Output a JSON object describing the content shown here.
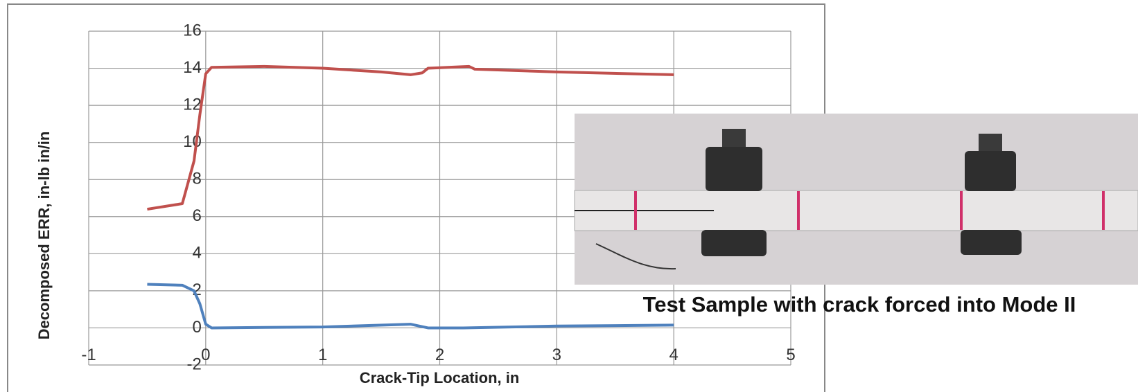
{
  "chart_data": {
    "type": "line",
    "x_label": "Crack-Tip Location, in",
    "y_label": "Decomposed ERR, in-lb in/in",
    "xlim": [
      -1,
      5
    ],
    "xticks": [
      -1,
      0,
      1,
      2,
      3,
      4,
      5
    ],
    "ylim": [
      -2,
      16
    ],
    "yticks": [
      -2,
      0,
      2,
      4,
      6,
      8,
      10,
      12,
      14,
      16
    ],
    "grid": true,
    "series": [
      {
        "color": "#c0504d",
        "x": [
          -0.5,
          -0.2,
          -0.1,
          -0.05,
          0,
          0.05,
          0.5,
          1,
          1.5,
          1.75,
          1.85,
          1.9,
          2.25,
          2.3,
          3,
          4
        ],
        "values": [
          6.4,
          6.7,
          9,
          11.5,
          13.7,
          14.05,
          14.1,
          14.0,
          13.8,
          13.65,
          13.75,
          14.0,
          14.1,
          13.95,
          13.8,
          13.65
        ]
      },
      {
        "color": "#4f81bd",
        "x": [
          -0.5,
          -0.2,
          -0.1,
          -0.05,
          0,
          0.05,
          1,
          1.75,
          1.9,
          2.2,
          3,
          4
        ],
        "values": [
          2.35,
          2.3,
          2.0,
          1.3,
          0.2,
          0.0,
          0.05,
          0.2,
          0.0,
          0.0,
          0.1,
          0.15
        ]
      }
    ]
  },
  "photo_caption": "Test Sample with crack forced into Mode II"
}
